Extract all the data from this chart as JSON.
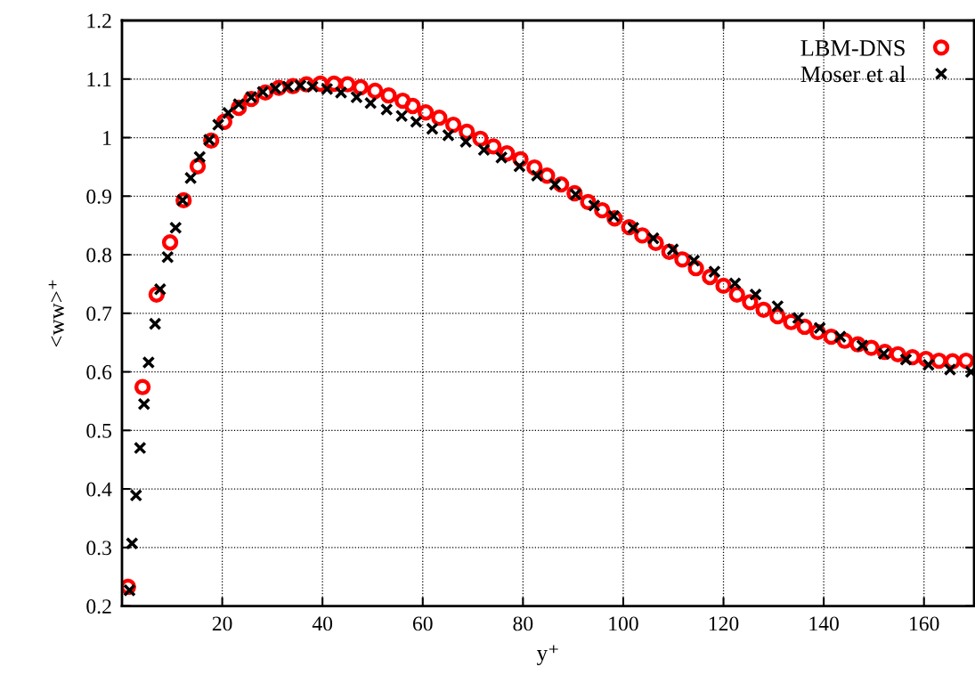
{
  "chart_data": {
    "type": "scatter",
    "xlabel": "y⁺",
    "ylabel": "<ww>⁺",
    "xlim": [
      0,
      170
    ],
    "ylim": [
      0.2,
      1.2
    ],
    "xticks": [
      20,
      40,
      60,
      80,
      100,
      120,
      140,
      160
    ],
    "yticks": [
      0.2,
      0.3,
      0.4,
      0.5,
      0.6,
      0.7,
      0.8,
      0.9,
      1,
      1.1,
      1.2
    ],
    "grid": true,
    "legend": "top right",
    "series": [
      {
        "name": "LBM-DNS",
        "color": "#ff0000",
        "marker": "circle",
        "x": [
          1.2,
          4.1,
          6.9,
          9.6,
          12.3,
          15.1,
          17.8,
          20.4,
          23.3,
          25.8,
          28.6,
          31.3,
          34.1,
          36.8,
          39.6,
          42.3,
          45,
          47.6,
          50.5,
          53.2,
          56,
          58,
          60.6,
          63.3,
          66.1,
          68.8,
          71.5,
          74.1,
          76.8,
          79.5,
          82.3,
          84.8,
          87.6,
          90.3,
          93,
          95.8,
          98.3,
          101.2,
          103.8,
          106.5,
          109.2,
          111.8,
          114.5,
          117.3,
          120,
          122.7,
          125.3,
          128,
          130.8,
          133.5,
          136.2,
          138.8,
          141.5,
          144.2,
          146.8,
          149.5,
          152.2,
          154.8,
          157.7,
          160.4,
          163,
          165.7,
          168.4
        ],
        "values": [
          0.233,
          0.574,
          0.732,
          0.821,
          0.893,
          0.951,
          0.995,
          1.027,
          1.051,
          1.066,
          1.077,
          1.085,
          1.088,
          1.091,
          1.092,
          1.092,
          1.091,
          1.086,
          1.08,
          1.072,
          1.063,
          1.054,
          1.043,
          1.034,
          1.022,
          1.01,
          0.998,
          0.985,
          0.973,
          0.963,
          0.949,
          0.935,
          0.92,
          0.905,
          0.89,
          0.876,
          0.862,
          0.847,
          0.833,
          0.82,
          0.805,
          0.792,
          0.777,
          0.762,
          0.747,
          0.732,
          0.719,
          0.706,
          0.695,
          0.685,
          0.677,
          0.668,
          0.66,
          0.653,
          0.647,
          0.641,
          0.634,
          0.63,
          0.625,
          0.622,
          0.619,
          0.618,
          0.619
        ]
      },
      {
        "name": "Moser et al",
        "color": "#000000",
        "marker": "cross",
        "x": [
          1.5,
          2.0,
          2.8,
          3.6,
          4.4,
          5.3,
          6.6,
          7.6,
          9.1,
          10.7,
          12.1,
          13.7,
          15.5,
          17.4,
          19.2,
          21.2,
          23.3,
          25.8,
          28.1,
          30.6,
          33.1,
          35.6,
          38.0,
          40.9,
          43.7,
          46.8,
          49.6,
          52.8,
          55.8,
          58.7,
          61.9,
          65.1,
          68.6,
          72.2,
          75.7,
          79.3,
          82.8,
          86.4,
          90.5,
          94.2,
          98.1,
          102.0,
          106.0,
          109.9,
          114.1,
          118.2,
          122.3,
          126.4,
          130.8,
          134.9,
          139.2,
          143.3,
          147.7,
          152,
          156.4,
          160.9,
          165.2,
          169.4
        ],
        "values": [
          0.227,
          0.307,
          0.389,
          0.47,
          0.545,
          0.616,
          0.682,
          0.741,
          0.796,
          0.846,
          0.893,
          0.931,
          0.967,
          0.996,
          1.022,
          1.042,
          1.057,
          1.069,
          1.078,
          1.084,
          1.087,
          1.089,
          1.087,
          1.083,
          1.077,
          1.069,
          1.059,
          1.048,
          1.037,
          1.027,
          1.015,
          1.004,
          0.993,
          0.979,
          0.966,
          0.951,
          0.935,
          0.92,
          0.903,
          0.884,
          0.866,
          0.846,
          0.828,
          0.809,
          0.79,
          0.771,
          0.751,
          0.732,
          0.712,
          0.692,
          0.675,
          0.66,
          0.645,
          0.631,
          0.621,
          0.612,
          0.604,
          0.6
        ]
      }
    ]
  }
}
